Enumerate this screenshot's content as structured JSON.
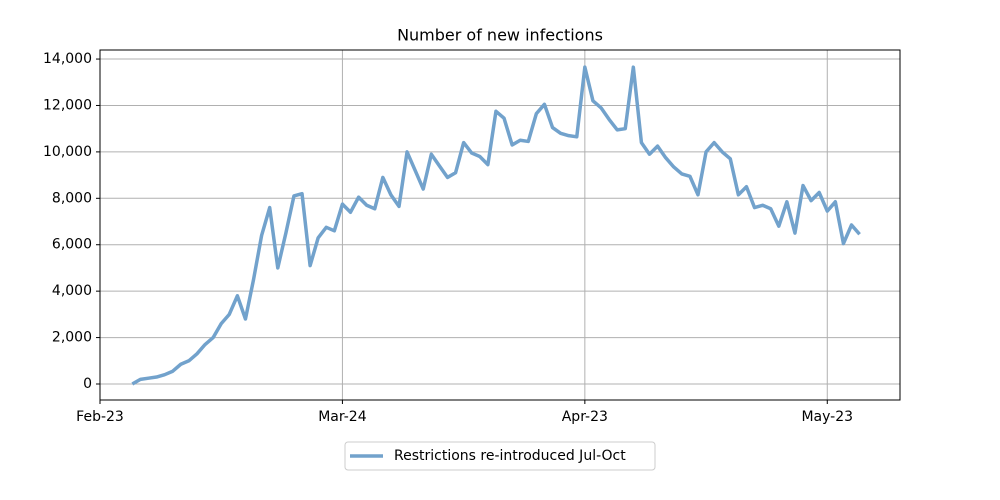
{
  "chart_data": {
    "type": "line",
    "title": "Number of new infections",
    "x": [
      4,
      5,
      6,
      7,
      8,
      9,
      10,
      11,
      12,
      13,
      14,
      15,
      16,
      17,
      18,
      19,
      20,
      21,
      22,
      23,
      24,
      25,
      26,
      27,
      28,
      29,
      30,
      31,
      32,
      33,
      34,
      35,
      36,
      37,
      38,
      39,
      40,
      41,
      42,
      43,
      44,
      45,
      46,
      47,
      48,
      49,
      50,
      51,
      52,
      53,
      54,
      55,
      56,
      57,
      58,
      59,
      60,
      61,
      62,
      63,
      64,
      65,
      66,
      67,
      68,
      69,
      70,
      71,
      72,
      73,
      74,
      75,
      76,
      77,
      78,
      79,
      80,
      81,
      82,
      83,
      84,
      85,
      86,
      87,
      88,
      89,
      90,
      91,
      92,
      93,
      94
    ],
    "series": [
      {
        "name": "Restrictions re-introduced Jul-Oct",
        "color": "#72a2cc",
        "values": [
          0,
          200,
          250,
          300,
          400,
          550,
          850,
          1000,
          1300,
          1700,
          2000,
          2600,
          3000,
          3800,
          2800,
          4500,
          6400,
          7600,
          5000,
          6500,
          8100,
          8200,
          5100,
          6300,
          6750,
          6600,
          7750,
          7400,
          8050,
          7700,
          7550,
          8900,
          8150,
          7650,
          10000,
          9200,
          8400,
          9900,
          9400,
          8900,
          9100,
          10400,
          9950,
          9800,
          9450,
          11750,
          11450,
          10300,
          10500,
          10450,
          11650,
          12050,
          11050,
          10800,
          10700,
          10650,
          13650,
          12200,
          11900,
          11400,
          10950,
          11000,
          13650,
          10400,
          9900,
          10250,
          9750,
          9350,
          9050,
          8950,
          8150,
          10000,
          10400,
          10000,
          9700,
          8150,
          8500,
          7600,
          7700,
          7550,
          6800,
          7850,
          6500,
          8550,
          7900,
          8250,
          7450,
          7850,
          6050,
          6850,
          6450
        ]
      }
    ],
    "xlim": [
      0,
      99
    ],
    "xticks": [
      {
        "value": 0,
        "label": "Feb-23"
      },
      {
        "value": 30,
        "label": "Mar-24"
      },
      {
        "value": 60,
        "label": "Apr-23"
      },
      {
        "value": 90,
        "label": "May-23"
      }
    ],
    "ylim": [
      -690,
      14390
    ],
    "yticks": [
      0,
      {
        "value": 2000,
        "label": "2,000"
      },
      {
        "value": 4000,
        "label": "4,000"
      },
      {
        "value": 6000,
        "label": "6,000"
      },
      {
        "value": 8000,
        "label": "8,000"
      },
      {
        "value": 10000,
        "label": "10,000"
      },
      {
        "value": 12000,
        "label": "12,000"
      },
      {
        "value": 14000,
        "label": "14,000"
      }
    ],
    "grid": true,
    "legend": "bottom"
  }
}
